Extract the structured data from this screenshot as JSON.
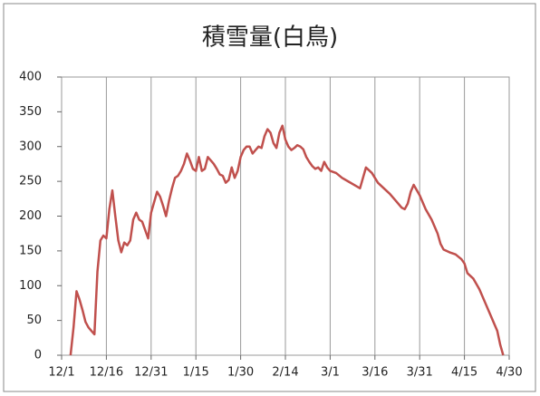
{
  "chart_data": {
    "type": "line",
    "title": "積雪量(白鳥)",
    "x": [
      "12/4",
      "12/5",
      "12/6",
      "12/7",
      "12/8",
      "12/9",
      "12/10",
      "12/11",
      "12/12",
      "12/13",
      "12/14",
      "12/15",
      "12/16",
      "12/17",
      "12/18",
      "12/19",
      "12/20",
      "12/21",
      "12/22",
      "12/23",
      "12/24",
      "12/25",
      "12/26",
      "12/27",
      "12/28",
      "12/29",
      "12/30",
      "12/31",
      "1/1",
      "1/2",
      "1/3",
      "1/4",
      "1/5",
      "1/6",
      "1/7",
      "1/8",
      "1/9",
      "1/10",
      "1/11",
      "1/12",
      "1/13",
      "1/14",
      "1/15",
      "1/16",
      "1/17",
      "1/18",
      "1/19",
      "1/20",
      "1/21",
      "1/22",
      "1/23",
      "1/24",
      "1/25",
      "1/26",
      "1/27",
      "1/28",
      "1/29",
      "1/30",
      "1/31",
      "2/1",
      "2/2",
      "2/3",
      "2/4",
      "2/5",
      "2/6",
      "2/7",
      "2/8",
      "2/9",
      "2/10",
      "2/11",
      "2/12",
      "2/13",
      "2/14",
      "2/15",
      "2/16",
      "2/17",
      "2/18",
      "2/19",
      "2/20",
      "2/21",
      "2/22",
      "2/23",
      "2/24",
      "2/25",
      "2/26",
      "2/27",
      "2/28",
      "3/1",
      "3/3",
      "3/5",
      "3/7",
      "3/9",
      "3/11",
      "3/12",
      "3/13",
      "3/15",
      "3/17",
      "3/19",
      "3/21",
      "3/23",
      "3/25",
      "3/26",
      "3/27",
      "3/28",
      "3/29",
      "3/31",
      "4/2",
      "4/4",
      "4/6",
      "4/7",
      "4/8",
      "4/10",
      "4/12",
      "4/14",
      "4/15",
      "4/16",
      "4/18",
      "4/20",
      "4/22",
      "4/24",
      "4/26",
      "4/27",
      "4/28"
    ],
    "series": [
      {
        "color": "#c0504d",
        "values": [
          0,
          40,
          92,
          80,
          65,
          48,
          40,
          35,
          30,
          120,
          165,
          172,
          168,
          210,
          237,
          200,
          165,
          148,
          162,
          158,
          165,
          195,
          205,
          195,
          192,
          180,
          168,
          205,
          220,
          235,
          228,
          215,
          200,
          222,
          240,
          255,
          258,
          265,
          275,
          290,
          280,
          268,
          265,
          285,
          265,
          268,
          285,
          280,
          275,
          268,
          260,
          258,
          248,
          252,
          270,
          255,
          265,
          285,
          295,
          300,
          300,
          290,
          295,
          300,
          298,
          315,
          325,
          320,
          305,
          298,
          320,
          330,
          310,
          300,
          295,
          298,
          302,
          300,
          296,
          285,
          278,
          272,
          268,
          270,
          265,
          278,
          270,
          265,
          262,
          255,
          250,
          245,
          240,
          255,
          270,
          262,
          248,
          240,
          232,
          222,
          212,
          210,
          218,
          235,
          245,
          230,
          210,
          195,
          175,
          160,
          152,
          148,
          145,
          138,
          132,
          118,
          110,
          95,
          75,
          55,
          35,
          15,
          0
        ]
      }
    ],
    "xlim": [
      "12/1",
      "4/30"
    ],
    "xticks": [
      "12/1",
      "12/16",
      "12/31",
      "1/15",
      "1/30",
      "2/14",
      "3/1",
      "3/16",
      "3/31",
      "4/15",
      "4/30"
    ],
    "ylim": [
      0,
      400
    ],
    "yticks": [
      0,
      50,
      100,
      150,
      200,
      250,
      300,
      350,
      400
    ],
    "grid": "x"
  }
}
